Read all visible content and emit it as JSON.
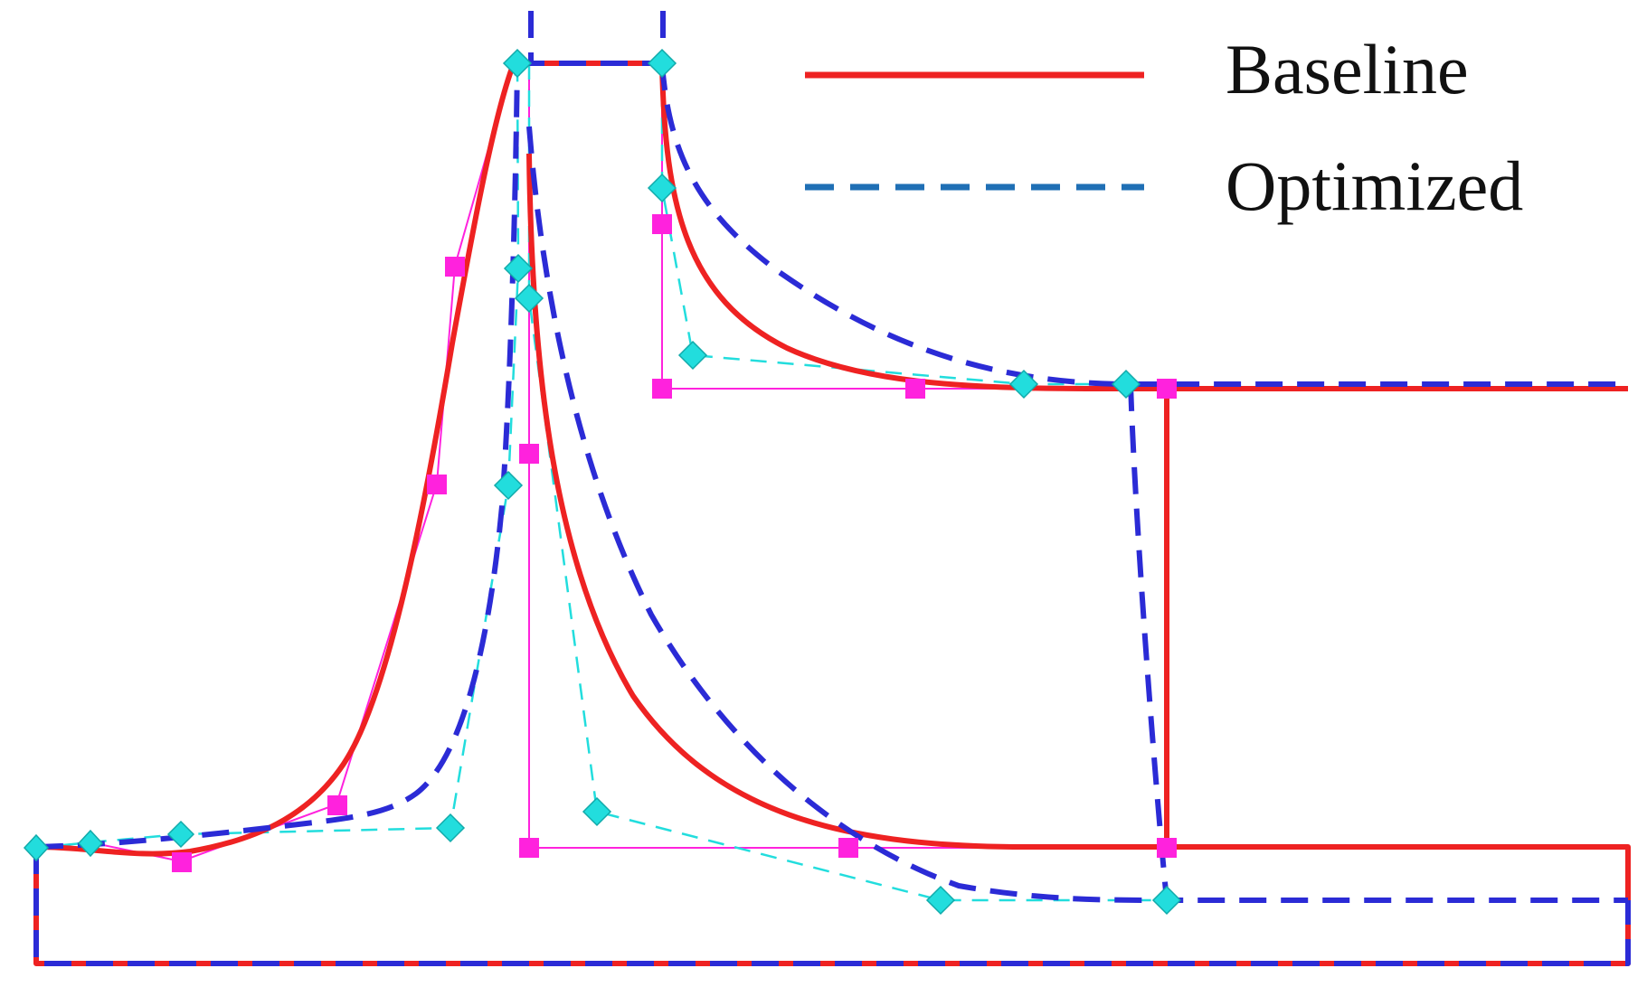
{
  "legend": {
    "baseline": {
      "label": "Baseline",
      "color": "#ee2222"
    },
    "optimized": {
      "label": "Optimized",
      "color": "#1f6fb5"
    }
  },
  "colors": {
    "baseline_curve": "#ee2222",
    "optimized_curve": "#2b2bd6",
    "baseline_control": "#ff22dd",
    "optimized_control": "#22dddd"
  },
  "markers": {
    "baseline_shape": "square",
    "optimized_shape": "diamond"
  }
}
